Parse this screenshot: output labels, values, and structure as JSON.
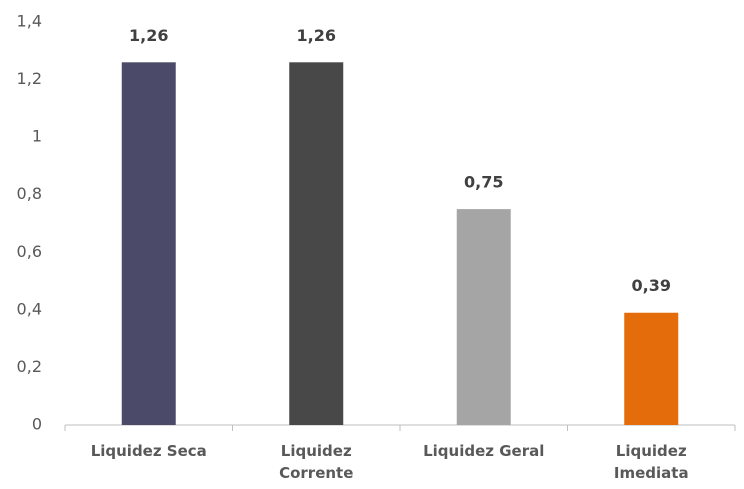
{
  "chart_data": {
    "type": "bar",
    "categories": [
      "Liquidez Seca",
      "Liquidez Corrente",
      "Liquidez Geral",
      "Liquidez Imediata"
    ],
    "values": [
      1.26,
      1.26,
      0.75,
      0.39
    ],
    "value_labels": [
      "1,26",
      "1,26",
      "0,75",
      "0,39"
    ],
    "colors": [
      "#4b4b69",
      "#484848",
      "#a5a5a5",
      "#e46c0a"
    ],
    "ylim": [
      0,
      1.4
    ],
    "yticks": [
      0,
      {
        "value": 0.2,
        "label": "0,2"
      },
      {
        "value": 0.4,
        "label": "0,4"
      },
      {
        "value": 0.6,
        "label": "0,6"
      },
      {
        "value": 0.8,
        "label": "0,8"
      },
      1,
      {
        "value": 1.2,
        "label": "1,2"
      },
      {
        "value": 1.4,
        "label": "1,4"
      }
    ],
    "grid": false
  }
}
